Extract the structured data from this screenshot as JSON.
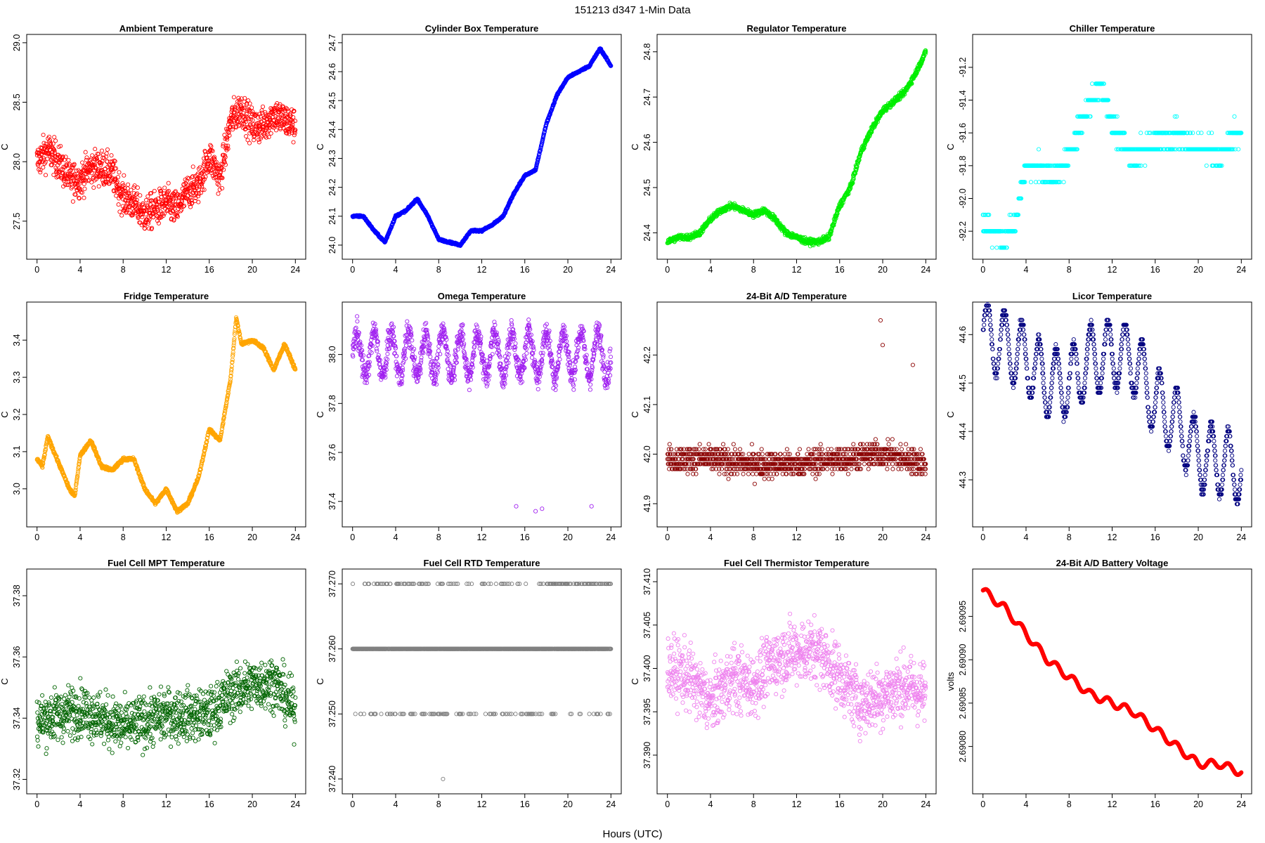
{
  "figure": {
    "suptitle": "151213    d347    1-Min Data",
    "xlabel": "Hours (UTC)"
  },
  "chart_data": [
    {
      "type": "scatter",
      "title": "Ambient Temperature",
      "ylabel": "C",
      "color": "#ff0000",
      "xlim": [
        0,
        24
      ],
      "ylim": [
        27.25,
        29.0
      ],
      "xticks": [
        "0",
        "4",
        "8",
        "12",
        "16",
        "20",
        "24"
      ],
      "yticks": [
        {
          "v": 27.5,
          "label": "27.5"
        },
        {
          "v": 28.0,
          "label": "28.0"
        },
        {
          "v": 28.5,
          "label": "28.5"
        },
        {
          "v": 29.0,
          "label": "29.0"
        }
      ],
      "x": [
        0,
        1,
        2,
        3,
        4,
        5,
        6,
        7,
        8,
        9,
        10,
        11,
        12,
        13,
        14,
        15,
        16,
        17,
        18,
        19,
        20,
        21,
        22,
        23,
        24
      ],
      "y": [
        28.0,
        28.1,
        28.0,
        27.85,
        27.85,
        27.95,
        27.95,
        27.9,
        27.7,
        27.65,
        27.55,
        27.6,
        27.65,
        27.6,
        27.75,
        27.8,
        28.05,
        27.85,
        28.35,
        28.45,
        28.3,
        28.3,
        28.4,
        28.35,
        28.3
      ],
      "noise": 0.14,
      "n": 1200
    },
    {
      "type": "scatter",
      "title": "Cylinder Box Temperature",
      "ylabel": "C",
      "color": "#0000ff",
      "xlim": [
        0,
        24
      ],
      "ylim": [
        23.98,
        24.7
      ],
      "xticks": [
        "0",
        "4",
        "8",
        "12",
        "16",
        "20",
        "24"
      ],
      "yticks": [
        {
          "v": 24.0,
          "label": "24.0"
        },
        {
          "v": 24.1,
          "label": "24.1"
        },
        {
          "v": 24.2,
          "label": "24.2"
        },
        {
          "v": 24.3,
          "label": "24.3"
        },
        {
          "v": 24.4,
          "label": "24.4"
        },
        {
          "v": 24.5,
          "label": "24.5"
        },
        {
          "v": 24.6,
          "label": "24.6"
        },
        {
          "v": 24.7,
          "label": "24.7"
        }
      ],
      "x": [
        0,
        1,
        2,
        3,
        4,
        5,
        6,
        7,
        8,
        9,
        10,
        11,
        12,
        13,
        14,
        15,
        16,
        17,
        18,
        19,
        20,
        21,
        22,
        23,
        24
      ],
      "y": [
        24.1,
        24.1,
        24.05,
        24.01,
        24.1,
        24.12,
        24.16,
        24.1,
        24.02,
        24.01,
        24.0,
        24.05,
        24.05,
        24.07,
        24.1,
        24.18,
        24.24,
        24.26,
        24.42,
        24.52,
        24.58,
        24.6,
        24.62,
        24.68,
        24.62
      ],
      "noise": 0.003,
      "n": 1200
    },
    {
      "type": "scatter",
      "title": "Regulator Temperature",
      "ylabel": "C",
      "color": "#00ee00",
      "xlim": [
        0,
        24
      ],
      "ylim": [
        24.36,
        24.82
      ],
      "xticks": [
        "0",
        "4",
        "8",
        "12",
        "16",
        "20",
        "24"
      ],
      "yticks": [
        {
          "v": 24.4,
          "label": "24.4"
        },
        {
          "v": 24.5,
          "label": "24.5"
        },
        {
          "v": 24.6,
          "label": "24.6"
        },
        {
          "v": 24.7,
          "label": "24.7"
        },
        {
          "v": 24.8,
          "label": "24.8"
        }
      ],
      "x": [
        0,
        1,
        2,
        3,
        4,
        5,
        6,
        7,
        8,
        9,
        10,
        11,
        12,
        13,
        14,
        15,
        16,
        17,
        18,
        19,
        20,
        21,
        22,
        23,
        24
      ],
      "y": [
        24.38,
        24.39,
        24.39,
        24.4,
        24.43,
        24.45,
        24.46,
        24.45,
        24.44,
        24.45,
        24.43,
        24.4,
        24.39,
        24.38,
        24.38,
        24.39,
        24.46,
        24.5,
        24.58,
        24.63,
        24.67,
        24.69,
        24.71,
        24.75,
        24.8
      ],
      "noise": 0.006,
      "n": 1200
    },
    {
      "type": "scatter",
      "title": "Chiller Temperature",
      "ylabel": "C",
      "color": "#00ffff",
      "xlim": [
        0,
        24
      ],
      "ylim": [
        -92.32,
        -91.05
      ],
      "xticks": [
        "0",
        "4",
        "8",
        "12",
        "16",
        "20",
        "24"
      ],
      "yticks": [
        {
          "v": -92.2,
          "label": "-92.2"
        },
        {
          "v": -92.0,
          "label": "-92.0"
        },
        {
          "v": -91.8,
          "label": "-91.8"
        },
        {
          "v": -91.6,
          "label": "-91.6"
        },
        {
          "v": -91.4,
          "label": "-91.4"
        },
        {
          "v": -91.2,
          "label": "-91.2"
        }
      ],
      "x": [
        0,
        1,
        2,
        3,
        4,
        5,
        6,
        7,
        8,
        9,
        10,
        11,
        12,
        13,
        14,
        15,
        16,
        17,
        18,
        19,
        20,
        21,
        22,
        23,
        24
      ],
      "y": [
        -92.15,
        -92.2,
        -92.25,
        -92.15,
        -91.8,
        -91.8,
        -91.85,
        -91.85,
        -91.75,
        -91.55,
        -91.4,
        -91.3,
        -91.55,
        -91.65,
        -91.75,
        -91.7,
        -91.65,
        -91.65,
        -91.6,
        -91.65,
        -91.7,
        -91.7,
        -91.75,
        -91.65,
        -91.6
      ],
      "noise": 0.06,
      "n": 900,
      "step": 0.1
    },
    {
      "type": "scatter",
      "title": "Fridge Temperature",
      "ylabel": "C",
      "color": "#ffa500",
      "xlim": [
        0,
        24
      ],
      "ylim": [
        2.92,
        3.48
      ],
      "xticks": [
        "0",
        "4",
        "8",
        "12",
        "16",
        "20",
        "24"
      ],
      "yticks": [
        {
          "v": 3.0,
          "label": "3.0"
        },
        {
          "v": 3.1,
          "label": "3.1"
        },
        {
          "v": 3.2,
          "label": "3.2"
        },
        {
          "v": 3.3,
          "label": "3.3"
        },
        {
          "v": 3.4,
          "label": "3.4"
        }
      ],
      "x": [
        0,
        0.5,
        1,
        2,
        3,
        3.5,
        4,
        5,
        6,
        7,
        8,
        9,
        10,
        11,
        12,
        13,
        14,
        15,
        16,
        17,
        18,
        18.5,
        19,
        20,
        21,
        22,
        23,
        24
      ],
      "y": [
        3.08,
        3.06,
        3.14,
        3.07,
        3.0,
        2.98,
        3.09,
        3.13,
        3.06,
        3.05,
        3.08,
        3.08,
        3.0,
        2.96,
        3.0,
        2.94,
        2.96,
        3.03,
        3.16,
        3.13,
        3.3,
        3.46,
        3.39,
        3.4,
        3.38,
        3.32,
        3.39,
        3.32
      ],
      "noise": 0.004,
      "n": 1200
    },
    {
      "type": "scatter",
      "title": "Omega Temperature",
      "ylabel": "C",
      "color": "#a020f0",
      "xlim": [
        0,
        24
      ],
      "ylim": [
        37.33,
        38.18
      ],
      "xticks": [
        "0",
        "4",
        "8",
        "12",
        "16",
        "20",
        "24"
      ],
      "yticks": [
        {
          "v": 37.4,
          "label": "37.4"
        },
        {
          "v": 37.6,
          "label": "37.6"
        },
        {
          "v": 37.8,
          "label": "37.8"
        },
        {
          "v": 38.0,
          "label": "38.0"
        }
      ],
      "x": [
        0,
        4,
        8,
        12,
        16,
        20,
        24
      ],
      "y": [
        38.0,
        38.0,
        38.0,
        38.0,
        38.0,
        38.0,
        38.0
      ],
      "noise": 0.05,
      "n": 1200,
      "osc": 0.09,
      "outliers": [
        [
          15.2,
          37.38
        ],
        [
          17.0,
          37.36
        ],
        [
          17.6,
          37.37
        ],
        [
          22.2,
          37.38
        ]
      ]
    },
    {
      "type": "scatter",
      "title": "24-Bit A/D Temperature",
      "ylabel": "C",
      "color": "#8b0000",
      "xlim": [
        0,
        24
      ],
      "ylim": [
        41.87,
        42.29
      ],
      "xticks": [
        "0",
        "4",
        "8",
        "12",
        "16",
        "20",
        "24"
      ],
      "yticks": [
        {
          "v": 41.9,
          "label": "41.9"
        },
        {
          "v": 42.0,
          "label": "42.0"
        },
        {
          "v": 42.1,
          "label": "42.1"
        },
        {
          "v": 42.2,
          "label": "42.2"
        }
      ],
      "x": [
        0,
        4,
        8,
        12,
        16,
        20,
        24
      ],
      "y": [
        41.99,
        41.99,
        41.98,
        41.98,
        41.99,
        42.0,
        41.98
      ],
      "noise": 0.025,
      "n": 1200,
      "step": 0.01,
      "spikes": [
        [
          19.8,
          42.27
        ],
        [
          20.0,
          42.22
        ],
        [
          22.8,
          42.18
        ]
      ]
    },
    {
      "type": "scatter",
      "title": "Licor Temperature",
      "ylabel": "C",
      "color": "#000080",
      "xlim": [
        0,
        24
      ],
      "ylim": [
        44.22,
        44.65
      ],
      "xticks": [
        "0",
        "4",
        "8",
        "12",
        "16",
        "20",
        "24"
      ],
      "yticks": [
        {
          "v": 44.3,
          "label": "44.3"
        },
        {
          "v": 44.4,
          "label": "44.4"
        },
        {
          "v": 44.5,
          "label": "44.5"
        },
        {
          "v": 44.6,
          "label": "44.6"
        }
      ],
      "x": [
        0,
        2,
        4,
        6,
        8,
        10,
        12,
        14,
        16,
        18,
        20,
        22,
        24
      ],
      "y": [
        44.6,
        44.58,
        44.55,
        44.5,
        44.5,
        44.55,
        44.56,
        44.55,
        44.46,
        44.42,
        44.35,
        44.34,
        44.32
      ],
      "noise": 0.01,
      "n": 1200,
      "osc": 0.07,
      "step": 0.01
    },
    {
      "type": "scatter",
      "title": "Fuel Cell MPT Temperature",
      "ylabel": "C",
      "color": "#006400",
      "xlim": [
        0,
        24
      ],
      "ylim": [
        37.318,
        37.386
      ],
      "xticks": [
        "0",
        "4",
        "8",
        "12",
        "16",
        "20",
        "24"
      ],
      "yticks": [
        {
          "v": 37.32,
          "label": "37.32"
        },
        {
          "v": 37.34,
          "label": "37.34"
        },
        {
          "v": 37.36,
          "label": "37.36"
        },
        {
          "v": 37.38,
          "label": "37.38"
        }
      ],
      "x": [
        0,
        4,
        8,
        12,
        16,
        18,
        20,
        22,
        24
      ],
      "y": [
        37.339,
        37.343,
        37.337,
        37.341,
        37.341,
        37.348,
        37.351,
        37.352,
        37.342
      ],
      "noise": 0.008,
      "n": 1200
    },
    {
      "type": "scatter",
      "title": "Fuel Cell RTD Temperature",
      "ylabel": "C",
      "color": "#808080",
      "xlim": [
        0,
        24
      ],
      "ylim": [
        37.239,
        37.271
      ],
      "xticks": [
        "0",
        "4",
        "8",
        "12",
        "16",
        "20",
        "24"
      ],
      "yticks": [
        {
          "v": 37.24,
          "label": "37.240"
        },
        {
          "v": 37.25,
          "label": "37.250"
        },
        {
          "v": 37.26,
          "label": "37.260"
        },
        {
          "v": 37.27,
          "label": "37.270"
        }
      ],
      "x": [
        0,
        24
      ],
      "y": [
        37.26,
        37.26
      ],
      "levels": [
        37.25,
        37.26,
        37.27
      ],
      "n": 1200,
      "outliers": [
        [
          8.4,
          37.24
        ]
      ]
    },
    {
      "type": "scatter",
      "title": "Fuel Cell Thermistor Temperature",
      "ylabel": "C",
      "color": "#ee82ee",
      "xlim": [
        0,
        24
      ],
      "ylim": [
        37.3865,
        37.4105
      ],
      "xticks": [
        "0",
        "4",
        "8",
        "12",
        "16",
        "20",
        "24"
      ],
      "yticks": [
        {
          "v": 37.39,
          "label": "37.390"
        },
        {
          "v": 37.395,
          "label": "37.395"
        },
        {
          "v": 37.4,
          "label": "37.400"
        },
        {
          "v": 37.405,
          "label": "37.405"
        },
        {
          "v": 37.41,
          "label": "37.410"
        }
      ],
      "x": [
        0,
        2,
        4,
        6,
        8,
        10,
        12,
        14,
        16,
        18,
        20,
        22,
        24
      ],
      "y": [
        37.4,
        37.399,
        37.396,
        37.399,
        37.398,
        37.401,
        37.402,
        37.402,
        37.399,
        37.396,
        37.397,
        37.398,
        37.397
      ],
      "noise": 0.0035,
      "n": 1200
    },
    {
      "type": "line",
      "title": "24-Bit A/D Battery Voltage",
      "ylabel": "volts",
      "color": "#ff0000",
      "xlim": [
        0,
        24
      ],
      "ylim": [
        2.690755,
        2.690995
      ],
      "xticks": [
        "0",
        "4",
        "8",
        "12",
        "16",
        "20",
        "24"
      ],
      "yticks": [
        {
          "v": 2.6908,
          "label": "2.69080"
        },
        {
          "v": 2.69085,
          "label": "2.69085"
        },
        {
          "v": 2.6909,
          "label": "2.69090"
        },
        {
          "v": 2.69095,
          "label": "2.69095"
        }
      ],
      "x": [
        0,
        2,
        4,
        6,
        8,
        10,
        12,
        14,
        16,
        18,
        20,
        22,
        24
      ],
      "y": [
        2.69098,
        2.69096,
        2.69093,
        2.6909,
        2.69088,
        2.69086,
        2.69085,
        2.69084,
        2.69082,
        2.6908,
        2.69078,
        2.69078,
        2.69077
      ],
      "osc": 4.5e-06,
      "n": 1200
    }
  ]
}
